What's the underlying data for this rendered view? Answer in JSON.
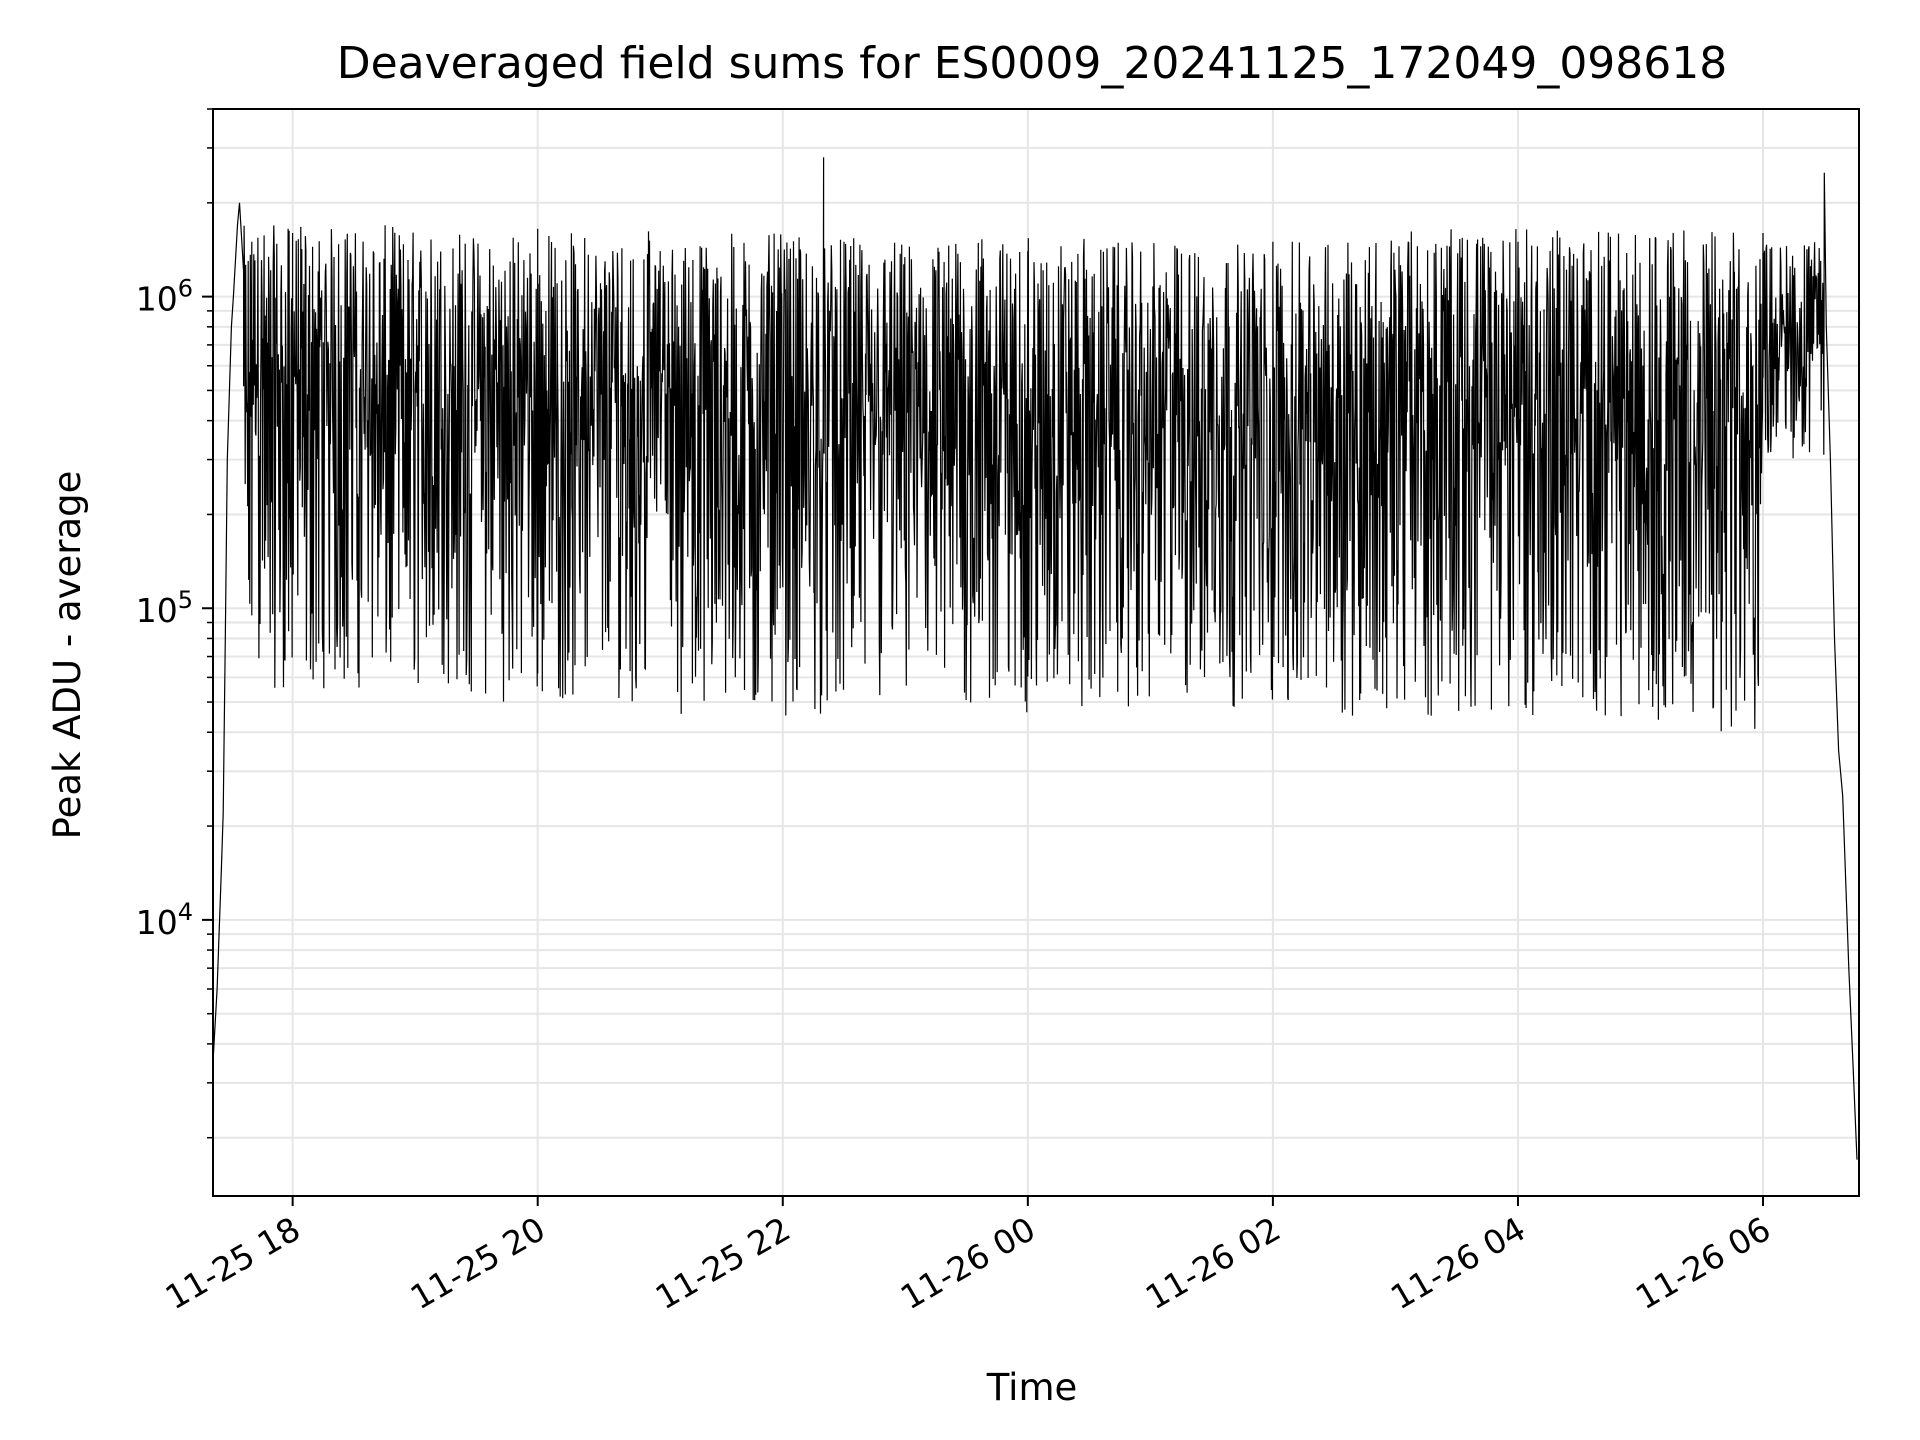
{
  "chart_data": {
    "type": "line",
    "title": "Deaveraged field sums for ES0009_20241125_172049_098618",
    "xlabel": "Time",
    "ylabel": "Peak ADU - average",
    "y_scale": "log",
    "ylim": [
      1300,
      4000000
    ],
    "xlim": [
      "2024-11-25 17:21",
      "2024-11-26 06:47"
    ],
    "grid": true,
    "x_ticks": [
      {
        "value": "2024-11-25 18:00",
        "label": "11-25 18"
      },
      {
        "value": "2024-11-25 20:00",
        "label": "11-25 20"
      },
      {
        "value": "2024-11-25 22:00",
        "label": "11-25 22"
      },
      {
        "value": "2024-11-26 00:00",
        "label": "11-26 00"
      },
      {
        "value": "2024-11-26 02:00",
        "label": "11-26 02"
      },
      {
        "value": "2024-11-26 04:00",
        "label": "11-26 04"
      },
      {
        "value": "2024-11-26 06:00",
        "label": "11-26 06"
      }
    ],
    "y_ticks": [
      {
        "value": 10000,
        "base": "10",
        "exp": "4"
      },
      {
        "value": 100000,
        "base": "10",
        "exp": "5"
      },
      {
        "value": 1000000,
        "base": "10",
        "exp": "6"
      }
    ],
    "series": [
      {
        "color": "#000000",
        "points": [
          [
            "2024-11-25 17:21",
            3500
          ],
          [
            "2024-11-25 17:23",
            6000
          ],
          [
            "2024-11-25 17:25",
            14000
          ],
          [
            "2024-11-25 17:26",
            22000
          ],
          [
            "2024-11-25 17:27",
            80000
          ],
          [
            "2024-11-25 17:28",
            300000
          ],
          [
            "2024-11-25 17:30",
            800000
          ],
          [
            "2024-11-25 17:31",
            1000000
          ],
          [
            "2024-11-25 17:33",
            1700000
          ],
          [
            "2024-11-25 17:34",
            2000000
          ],
          [
            "2024-11-25 17:36",
            1200000
          ],
          [
            "2024-11-25 17:40",
            1500000
          ],
          [
            "2024-11-25 18:00",
            1600000
          ],
          [
            "2024-11-25 20:00",
            1650000
          ],
          [
            "2024-11-25 21:00",
            1400000
          ],
          [
            "2024-11-25 22:20",
            2800000
          ],
          [
            "2024-11-25 22:30",
            1500000
          ],
          [
            "2024-11-26 00:00",
            1400000
          ],
          [
            "2024-11-26 02:00",
            1500000
          ],
          [
            "2024-11-26 04:00",
            1500000
          ],
          [
            "2024-11-26 06:00",
            1600000
          ],
          [
            "2024-11-26 06:30",
            2500000
          ],
          [
            "2024-11-26 06:31",
            800000
          ],
          [
            "2024-11-26 06:33",
            300000
          ],
          [
            "2024-11-26 06:35",
            80000
          ],
          [
            "2024-11-26 06:37",
            35000
          ],
          [
            "2024-11-26 06:39",
            25000
          ],
          [
            "2024-11-26 06:42",
            7000
          ],
          [
            "2024-11-26 06:44",
            3500
          ],
          [
            "2024-11-26 06:46",
            1700
          ]
        ],
        "envelope": {
          "segments": [
            {
              "from": "2024-11-25 17:36",
              "to": "2024-11-25 19:25",
              "max": 1700000,
              "min": 55000
            },
            {
              "from": "2024-11-25 19:25",
              "to": "2024-11-25 20:55",
              "max": 1650000,
              "min": 50000
            },
            {
              "from": "2024-11-25 20:55",
              "to": "2024-11-25 21:05",
              "max": 1300000,
              "min": 200000
            },
            {
              "from": "2024-11-25 21:05",
              "to": "2024-11-25 22:00",
              "max": 1600000,
              "min": 43000
            },
            {
              "from": "2024-11-25 22:00",
              "to": "2024-11-26 00:30",
              "max": 1550000,
              "min": 45000
            },
            {
              "from": "2024-11-26 00:30",
              "to": "2024-11-26 02:30",
              "max": 1500000,
              "min": 48000
            },
            {
              "from": "2024-11-26 02:30",
              "to": "2024-11-26 05:00",
              "max": 1650000,
              "min": 45000
            },
            {
              "from": "2024-11-26 05:00",
              "to": "2024-11-26 06:00",
              "max": 1650000,
              "min": 40000
            },
            {
              "from": "2024-11-26 06:00",
              "to": "2024-11-26 06:30",
              "max": 1500000,
              "min": 300000
            }
          ]
        }
      }
    ]
  }
}
